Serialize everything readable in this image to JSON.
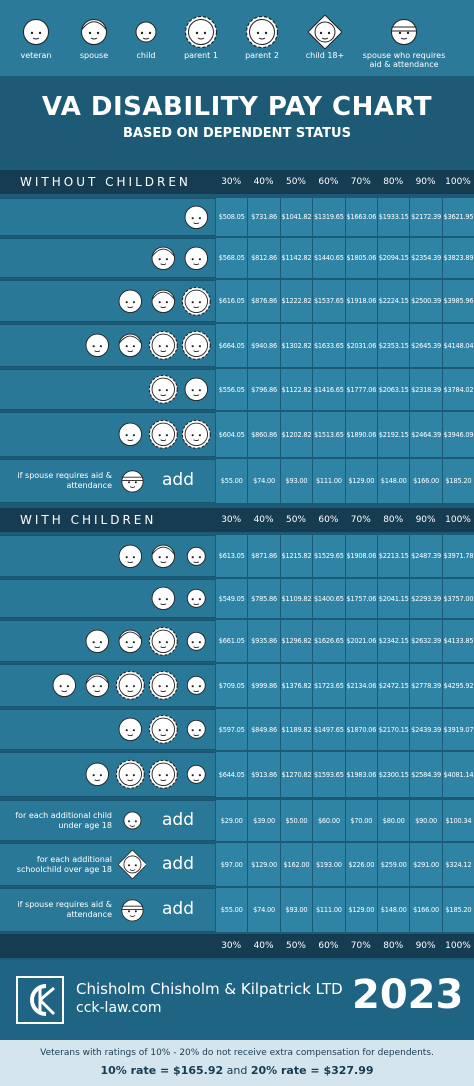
{
  "legend": [
    "veteran",
    "spouse",
    "child",
    "parent 1",
    "parent 2",
    "child 18+",
    "spouse who requires aid & attendance"
  ],
  "title": "VA DISABILITY PAY CHART",
  "subtitle": "BASED ON DEPENDENT STATUS",
  "columns": [
    "30%",
    "40%",
    "50%",
    "60%",
    "70%",
    "80%",
    "90%",
    "100%"
  ],
  "without_children": {
    "heading": "WITHOUT CHILDREN",
    "rows": [
      {
        "amounts": [
          "$508.05",
          "$731.86",
          "$1041.82",
          "$1319.65",
          "$1663.06",
          "$1933.15",
          "$2172.39",
          "$3621.95"
        ]
      },
      {
        "amounts": [
          "$568.05",
          "$812.86",
          "$1142.82",
          "$1440.65",
          "$1805.06",
          "$2094.15",
          "$2354.39",
          "$3823.89"
        ]
      },
      {
        "amounts": [
          "$616.05",
          "$876.86",
          "$1222.82",
          "$1537.65",
          "$1918.06",
          "$2224.15",
          "$2500.39",
          "$3985.96"
        ]
      },
      {
        "amounts": [
          "$664.05",
          "$940.86",
          "$1302.82",
          "$1633.65",
          "$2031.06",
          "$2353.15",
          "$2645.39",
          "$4148.04"
        ]
      },
      {
        "amounts": [
          "$556.05",
          "$796.86",
          "$1122.82",
          "$1416.65",
          "$1777.06",
          "$2063.15",
          "$2318.39",
          "$3784.02"
        ]
      },
      {
        "amounts": [
          "$604.05",
          "$860.86",
          "$1202.82",
          "$1513.65",
          "$1890.06",
          "$2192.15",
          "$2464.39",
          "$3946.09"
        ]
      },
      {
        "label": "if spouse requires aid & attendance",
        "action": "add",
        "amounts": [
          "$55.00",
          "$74.00",
          "$93.00",
          "$111.00",
          "$129.00",
          "$148.00",
          "$166.00",
          "$185.20"
        ]
      }
    ]
  },
  "with_children": {
    "heading": "WITH CHILDREN",
    "rows": [
      {
        "amounts": [
          "$613.05",
          "$871.86",
          "$1215.82",
          "$1529.65",
          "$1908.06",
          "$2213.15",
          "$2487.39",
          "$3971.78"
        ]
      },
      {
        "amounts": [
          "$549.05",
          "$785.86",
          "$1109.82",
          "$1400.65",
          "$1757.06",
          "$2041.15",
          "$2293.39",
          "$3757.00"
        ]
      },
      {
        "amounts": [
          "$661.05",
          "$935.86",
          "$1296.82",
          "$1626.65",
          "$2021.06",
          "$2342.15",
          "$2632.39",
          "$4133.85"
        ]
      },
      {
        "amounts": [
          "$709.05",
          "$999.86",
          "$1376.82",
          "$1723.65",
          "$2134.06",
          "$2472.15",
          "$2778.39",
          "$4295.92"
        ]
      },
      {
        "amounts": [
          "$597.05",
          "$849.86",
          "$1189.82",
          "$1497.65",
          "$1870.06",
          "$2170.15",
          "$2439.39",
          "$3919.07"
        ]
      },
      {
        "amounts": [
          "$644.05",
          "$913.86",
          "$1270.82",
          "$1593.65",
          "$1983.06",
          "$2300.15",
          "$2584.39",
          "$4081.14"
        ]
      },
      {
        "label": "for each additional child under age 18",
        "action": "add",
        "amounts": [
          "$29.00",
          "$39.00",
          "$50.00",
          "$60.00",
          "$70.00",
          "$80.00",
          "$90.00",
          "$100.34"
        ]
      },
      {
        "label": "for each additional schoolchild over age 18",
        "action": "add",
        "amounts": [
          "$97.00",
          "$129.00",
          "$162.00",
          "$193.00",
          "$226.00",
          "$259.00",
          "$291.00",
          "$324.12"
        ]
      },
      {
        "label": "if spouse requires aid & attendance",
        "action": "add",
        "amounts": [
          "$55.00",
          "$74.00",
          "$93.00",
          "$111.00",
          "$129.00",
          "$148.00",
          "$166.00",
          "$185.20"
        ]
      }
    ]
  },
  "footer": {
    "firm": "Chisholm Chisholm & Kilpatrick LTD",
    "url": "cck-law.com",
    "year": "2023"
  },
  "note": {
    "text": "Veterans with ratings of 10% - 20% do not receive extra compensation for dependents.",
    "rate_10": "10% rate = $165.92",
    "joiner": "and",
    "rate_20": "20% rate = $327.99"
  }
}
